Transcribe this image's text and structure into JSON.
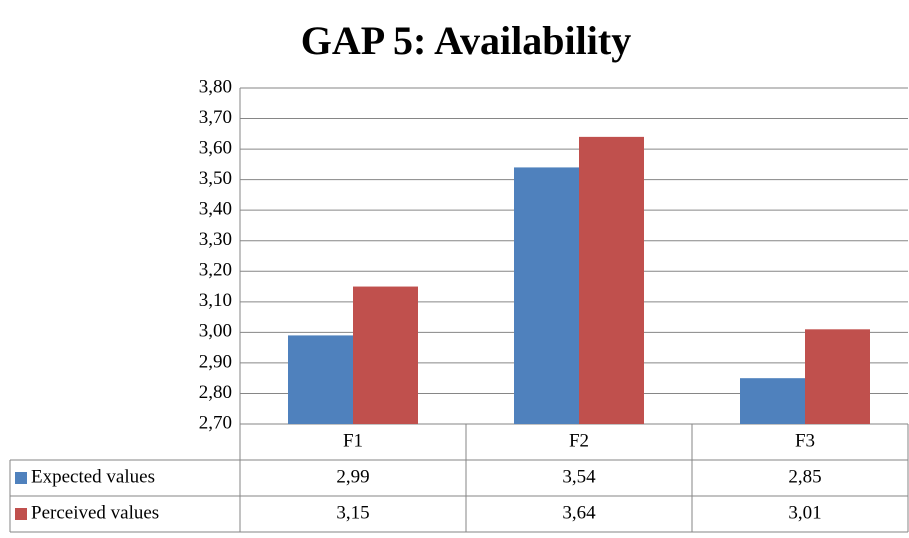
{
  "chart_data": {
    "type": "bar",
    "title": "GAP 5: Availability",
    "categories": [
      "F1",
      "F2",
      "F3"
    ],
    "series": [
      {
        "name": "Expected values",
        "color": "#4f81bd",
        "values": [
          2.99,
          3.54,
          2.85
        ],
        "value_labels": [
          "2,99",
          "3,54",
          "2,85"
        ]
      },
      {
        "name": "Perceived values",
        "color": "#c0504d",
        "values": [
          3.15,
          3.64,
          3.01
        ],
        "value_labels": [
          "3,15",
          "3,64",
          "3,01"
        ]
      }
    ],
    "ylim": [
      2.7,
      3.8
    ],
    "yticks": [
      {
        "value": 2.7,
        "label": "2,70"
      },
      {
        "value": 2.8,
        "label": "2,80"
      },
      {
        "value": 2.9,
        "label": "2,90"
      },
      {
        "value": 3.0,
        "label": "3,00"
      },
      {
        "value": 3.1,
        "label": "3,10"
      },
      {
        "value": 3.2,
        "label": "3,20"
      },
      {
        "value": 3.3,
        "label": "3,30"
      },
      {
        "value": 3.4,
        "label": "3,40"
      },
      {
        "value": 3.5,
        "label": "3,50"
      },
      {
        "value": 3.6,
        "label": "3,60"
      },
      {
        "value": 3.7,
        "label": "3,70"
      },
      {
        "value": 3.8,
        "label": "3,80"
      }
    ],
    "grid": true
  }
}
